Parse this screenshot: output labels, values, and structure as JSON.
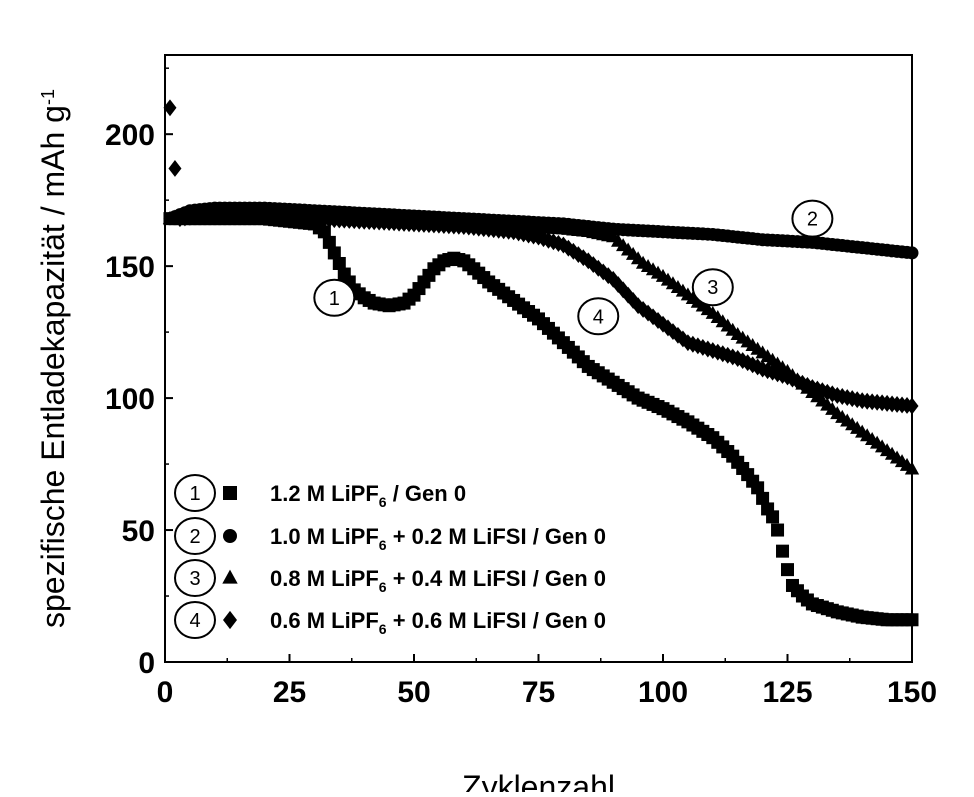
{
  "chart_data": {
    "type": "scatter",
    "xlabel": "Zyklenzahl",
    "ylabel": "spezifische Entladekapazität / mAh g",
    "ylabel_sup": "-1",
    "xlim": [
      0,
      150
    ],
    "ylim": [
      0,
      230
    ],
    "x_ticks": [
      "0",
      "25",
      "50",
      "75",
      "100",
      "125",
      "150"
    ],
    "y_ticks": [
      "0",
      "50",
      "100",
      "150",
      "200"
    ],
    "grid": false,
    "legend_position": "bottom-left",
    "series": [
      {
        "id": "1",
        "marker": "square",
        "label_parts": [
          "1.2 M LiPF",
          "6",
          " / Gen 0"
        ],
        "points": [
          [
            1,
            168
          ],
          [
            5,
            168
          ],
          [
            10,
            168
          ],
          [
            20,
            168
          ],
          [
            25,
            167
          ],
          [
            30,
            166
          ],
          [
            32,
            163
          ],
          [
            34,
            155
          ],
          [
            36,
            147
          ],
          [
            38,
            141
          ],
          [
            40,
            138
          ],
          [
            42,
            136
          ],
          [
            45,
            135
          ],
          [
            48,
            136
          ],
          [
            50,
            139
          ],
          [
            52,
            144
          ],
          [
            54,
            149
          ],
          [
            56,
            152
          ],
          [
            58,
            153
          ],
          [
            60,
            152
          ],
          [
            62,
            149
          ],
          [
            65,
            144
          ],
          [
            70,
            137
          ],
          [
            75,
            130
          ],
          [
            80,
            121
          ],
          [
            85,
            112
          ],
          [
            90,
            106
          ],
          [
            95,
            100
          ],
          [
            100,
            96
          ],
          [
            105,
            91
          ],
          [
            110,
            85
          ],
          [
            114,
            78
          ],
          [
            117,
            71
          ],
          [
            119,
            66
          ],
          [
            120,
            62
          ],
          [
            121,
            58
          ],
          [
            122,
            55
          ],
          [
            123,
            50
          ],
          [
            124,
            42
          ],
          [
            125,
            35
          ],
          [
            126,
            29
          ],
          [
            128,
            25
          ],
          [
            130,
            22
          ],
          [
            135,
            19
          ],
          [
            140,
            17
          ],
          [
            145,
            16
          ],
          [
            150,
            16
          ]
        ]
      },
      {
        "id": "2",
        "marker": "circle",
        "label_parts": [
          "1.0 M LiPF",
          "6",
          " + 0.2 M LiFSI / Gen 0"
        ],
        "points": [
          [
            1,
            168
          ],
          [
            5,
            171
          ],
          [
            10,
            172
          ],
          [
            20,
            172
          ],
          [
            30,
            171
          ],
          [
            40,
            170
          ],
          [
            50,
            169
          ],
          [
            60,
            168
          ],
          [
            70,
            167
          ],
          [
            80,
            166
          ],
          [
            90,
            164
          ],
          [
            100,
            163
          ],
          [
            110,
            162
          ],
          [
            120,
            160
          ],
          [
            130,
            159
          ],
          [
            140,
            157
          ],
          [
            150,
            155
          ]
        ]
      },
      {
        "id": "3",
        "marker": "triangle",
        "label_parts": [
          "0.8 M LiPF",
          "6",
          " + 0.4 M LiFSI / Gen 0"
        ],
        "points": [
          [
            1,
            168
          ],
          [
            5,
            170
          ],
          [
            10,
            171
          ],
          [
            20,
            170
          ],
          [
            30,
            169
          ],
          [
            40,
            168
          ],
          [
            50,
            167
          ],
          [
            60,
            166
          ],
          [
            70,
            165
          ],
          [
            80,
            164
          ],
          [
            85,
            163
          ],
          [
            90,
            161
          ],
          [
            93,
            156
          ],
          [
            96,
            151
          ],
          [
            100,
            146
          ],
          [
            105,
            139
          ],
          [
            110,
            132
          ],
          [
            115,
            124
          ],
          [
            120,
            117
          ],
          [
            125,
            110
          ],
          [
            130,
            102
          ],
          [
            135,
            94
          ],
          [
            140,
            87
          ],
          [
            145,
            80
          ],
          [
            150,
            73
          ]
        ]
      },
      {
        "id": "4",
        "marker": "diamond",
        "label_parts": [
          "0.6 M LiPF",
          "6",
          " + 0.6 M LiFSI / Gen 0"
        ],
        "points": [
          [
            1,
            210
          ],
          [
            2,
            187
          ],
          [
            3,
            168
          ],
          [
            10,
            170
          ],
          [
            20,
            169
          ],
          [
            30,
            168
          ],
          [
            40,
            167
          ],
          [
            50,
            166
          ],
          [
            60,
            165
          ],
          [
            70,
            163
          ],
          [
            75,
            161
          ],
          [
            80,
            158
          ],
          [
            85,
            152
          ],
          [
            90,
            145
          ],
          [
            95,
            135
          ],
          [
            100,
            128
          ],
          [
            105,
            121
          ],
          [
            110,
            118
          ],
          [
            115,
            115
          ],
          [
            120,
            111
          ],
          [
            125,
            108
          ],
          [
            130,
            104
          ],
          [
            135,
            101
          ],
          [
            140,
            99
          ],
          [
            145,
            98
          ],
          [
            150,
            97
          ]
        ]
      }
    ],
    "annotations": [
      {
        "label": "1",
        "x": 34,
        "y": 138
      },
      {
        "label": "2",
        "x": 130,
        "y": 168
      },
      {
        "label": "3",
        "x": 110,
        "y": 142
      },
      {
        "label": "4",
        "x": 87,
        "y": 131
      }
    ]
  }
}
